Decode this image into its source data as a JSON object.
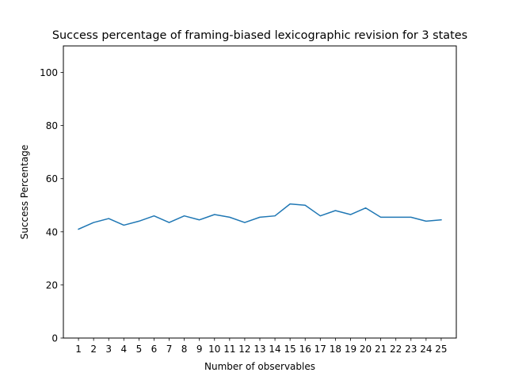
{
  "chart_data": {
    "type": "line",
    "title": "Success percentage of framing-biased lexicographic revision for 3 states",
    "xlabel": "Number of observables",
    "ylabel": "Success Percentage",
    "ylim": [
      0,
      110
    ],
    "xlim": [
      0,
      26
    ],
    "yticks": [
      "0",
      "20",
      "40",
      "60",
      "80",
      "100"
    ],
    "categories": [
      "1",
      "2",
      "3",
      "4",
      "5",
      "6",
      "7",
      "8",
      "9",
      "10",
      "11",
      "12",
      "13",
      "14",
      "15",
      "16",
      "17",
      "18",
      "19",
      "20",
      "21",
      "22",
      "23",
      "24",
      "25"
    ],
    "series": [
      {
        "values": [
          41.0,
          43.5,
          45.0,
          42.5,
          44.0,
          46.0,
          43.5,
          46.0,
          44.5,
          46.5,
          45.5,
          43.5,
          45.5,
          46.0,
          50.5,
          50.0,
          46.0,
          48.0,
          46.5,
          49.0,
          45.5,
          45.5,
          45.5,
          44.0,
          44.5
        ],
        "color": "#1f77b4"
      }
    ],
    "grid": false,
    "legend": "none"
  }
}
